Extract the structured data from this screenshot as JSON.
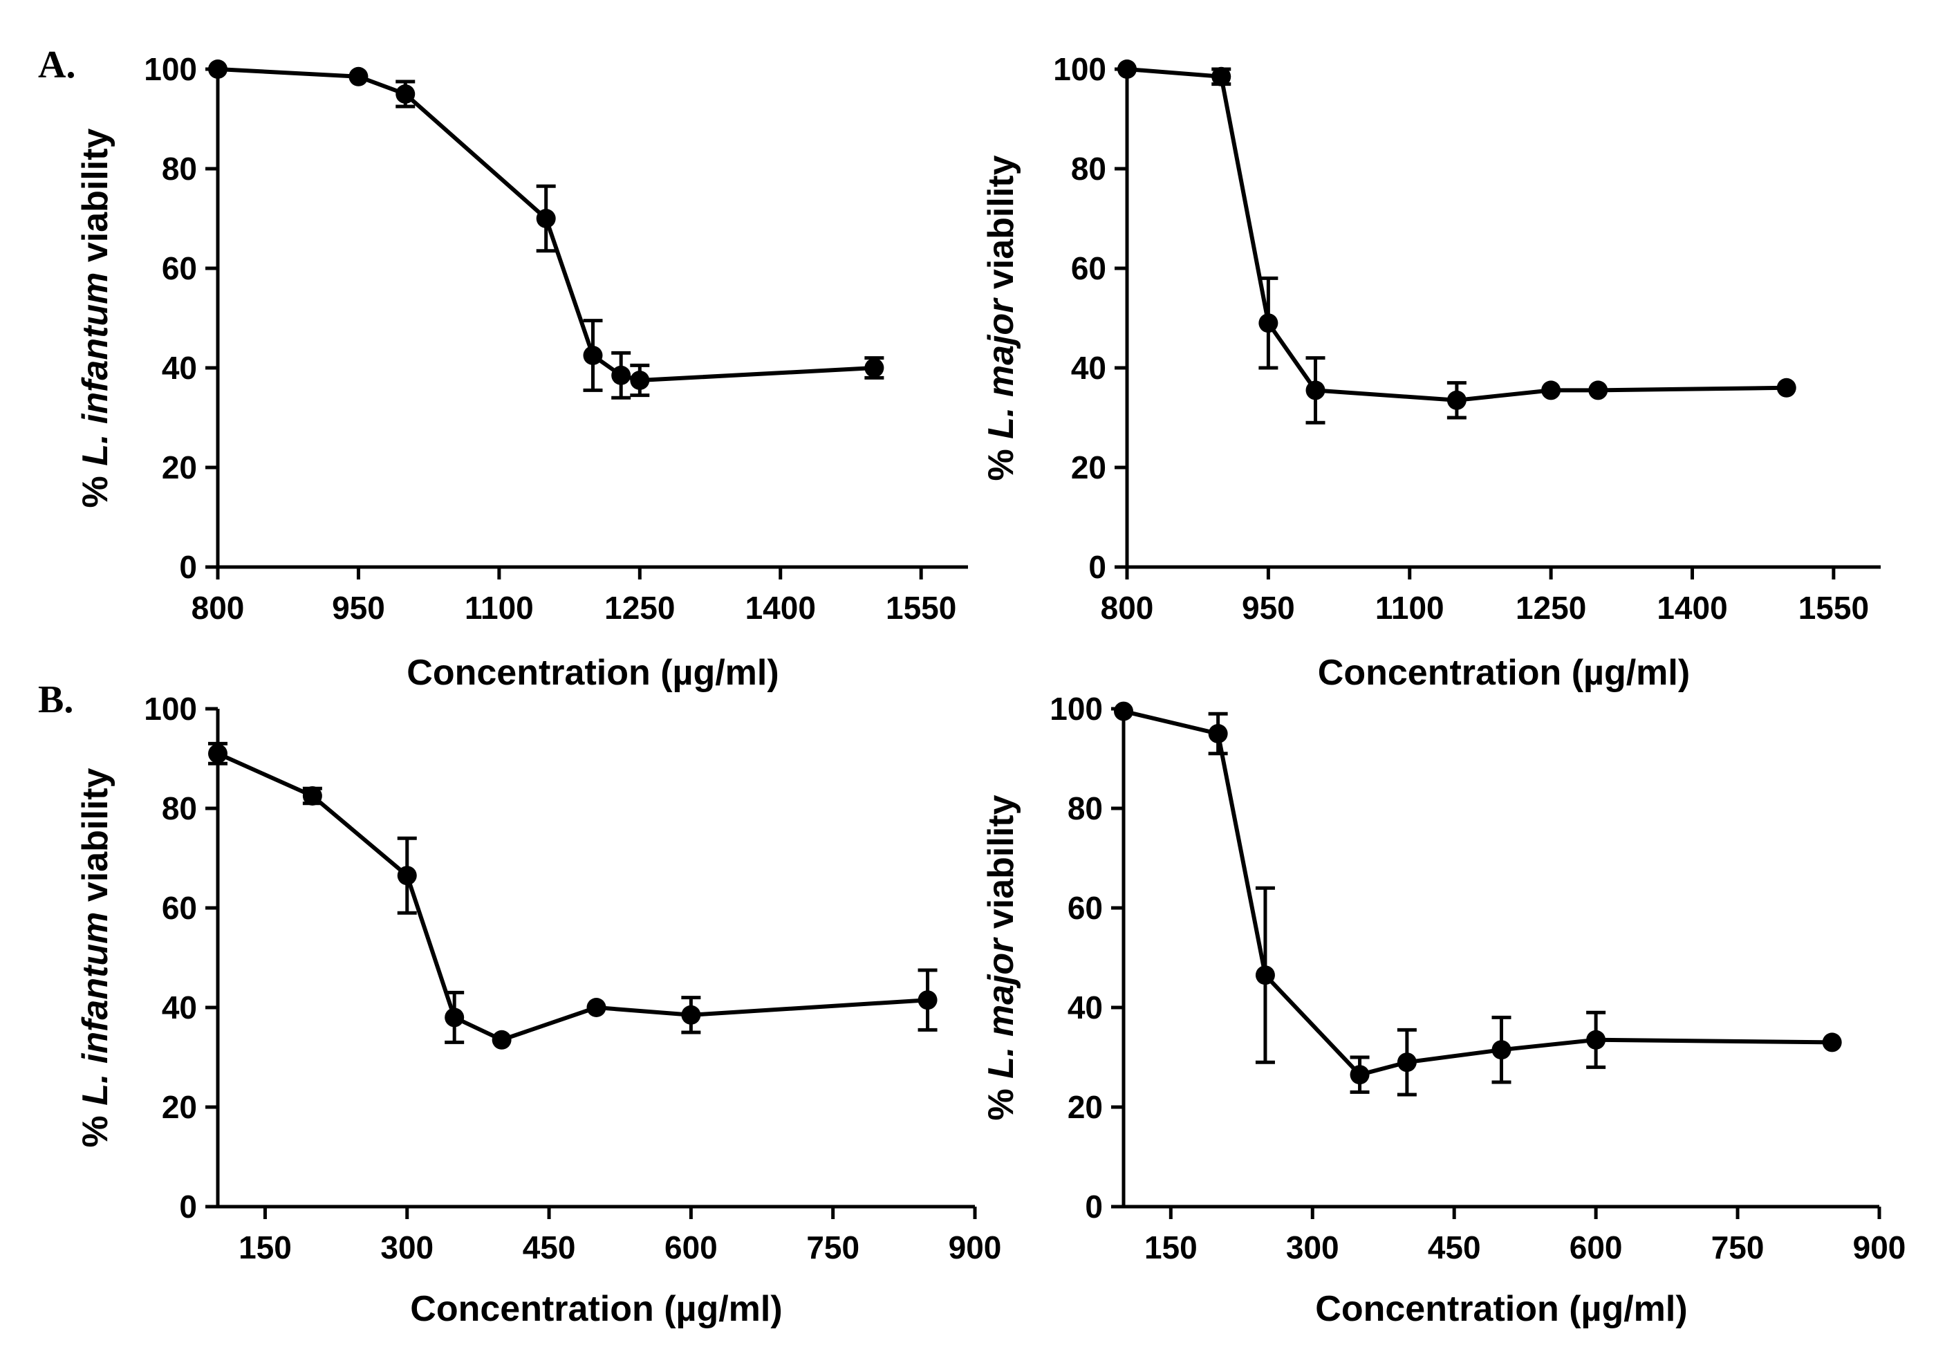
{
  "panel_labels": {
    "A": "A.",
    "B": "B."
  },
  "chart_data": [
    {
      "type": "line",
      "id": "A-left",
      "xlabel": "Concentration (µg/ml)",
      "ylabel_prefix": "% ",
      "ylabel_species": "L. infantum",
      "ylabel_suffix": " viability",
      "xlim": [
        800,
        1600
      ],
      "ylim": [
        0,
        100
      ],
      "xticks": [
        800,
        950,
        1100,
        1250,
        1400,
        1550
      ],
      "yticks": [
        0,
        20,
        40,
        60,
        80,
        100
      ],
      "series": [
        {
          "name": "viability",
          "x": [
            800,
            950,
            1000,
            1150,
            1200,
            1230,
            1250,
            1500
          ],
          "y": [
            100,
            98.5,
            95,
            70,
            42.5,
            38.5,
            37.5,
            40
          ],
          "err": [
            0,
            0,
            2.5,
            6.5,
            7,
            4.5,
            3,
            2
          ]
        }
      ]
    },
    {
      "type": "line",
      "id": "A-right",
      "xlabel": "Concentration (µg/ml)",
      "ylabel_prefix": "% ",
      "ylabel_species": "L. major",
      "ylabel_suffix": " viability",
      "xlim": [
        800,
        1600
      ],
      "ylim": [
        0,
        100
      ],
      "xticks": [
        800,
        950,
        1100,
        1250,
        1400,
        1550
      ],
      "yticks": [
        0,
        20,
        40,
        60,
        80,
        100
      ],
      "series": [
        {
          "name": "viability",
          "x": [
            800,
            900,
            950,
            1000,
            1150,
            1250,
            1300,
            1500
          ],
          "y": [
            100,
            98.5,
            49,
            35.5,
            33.5,
            35.5,
            35.5,
            36
          ],
          "err": [
            0,
            1.5,
            9,
            6.5,
            3.5,
            0,
            0,
            0
          ]
        }
      ]
    },
    {
      "type": "line",
      "id": "B-left",
      "xlabel": "Concentration (µg/ml)",
      "ylabel_prefix": "% ",
      "ylabel_species": "L. infantum",
      "ylabel_suffix": " viability",
      "xlim": [
        100,
        900
      ],
      "ylim": [
        0,
        100
      ],
      "xticks": [
        150,
        300,
        450,
        600,
        750,
        900
      ],
      "yticks": [
        0,
        20,
        40,
        60,
        80,
        100
      ],
      "series": [
        {
          "name": "viability",
          "x": [
            100,
            200,
            300,
            350,
            400,
            500,
            600,
            850
          ],
          "y": [
            91,
            82.5,
            66.5,
            38,
            33.5,
            40,
            38.5,
            41.5
          ],
          "err": [
            2,
            1.5,
            7.5,
            5,
            0,
            0,
            3.5,
            6
          ]
        }
      ]
    },
    {
      "type": "line",
      "id": "B-right",
      "xlabel": "Concentration (µg/ml)",
      "ylabel_prefix": "% ",
      "ylabel_species": "L. major",
      "ylabel_suffix": " viability",
      "xlim": [
        100,
        900
      ],
      "ylim": [
        0,
        100
      ],
      "xticks": [
        150,
        300,
        450,
        600,
        750,
        900
      ],
      "yticks": [
        0,
        20,
        40,
        60,
        80,
        100
      ],
      "series": [
        {
          "name": "viability",
          "x": [
            100,
            200,
            250,
            350,
            400,
            500,
            600,
            850
          ],
          "y": [
            99.5,
            95,
            46.5,
            26.5,
            29,
            31.5,
            33.5,
            33
          ],
          "err": [
            0,
            4,
            17.5,
            3.5,
            6.5,
            6.5,
            5.5,
            0
          ]
        }
      ]
    }
  ]
}
